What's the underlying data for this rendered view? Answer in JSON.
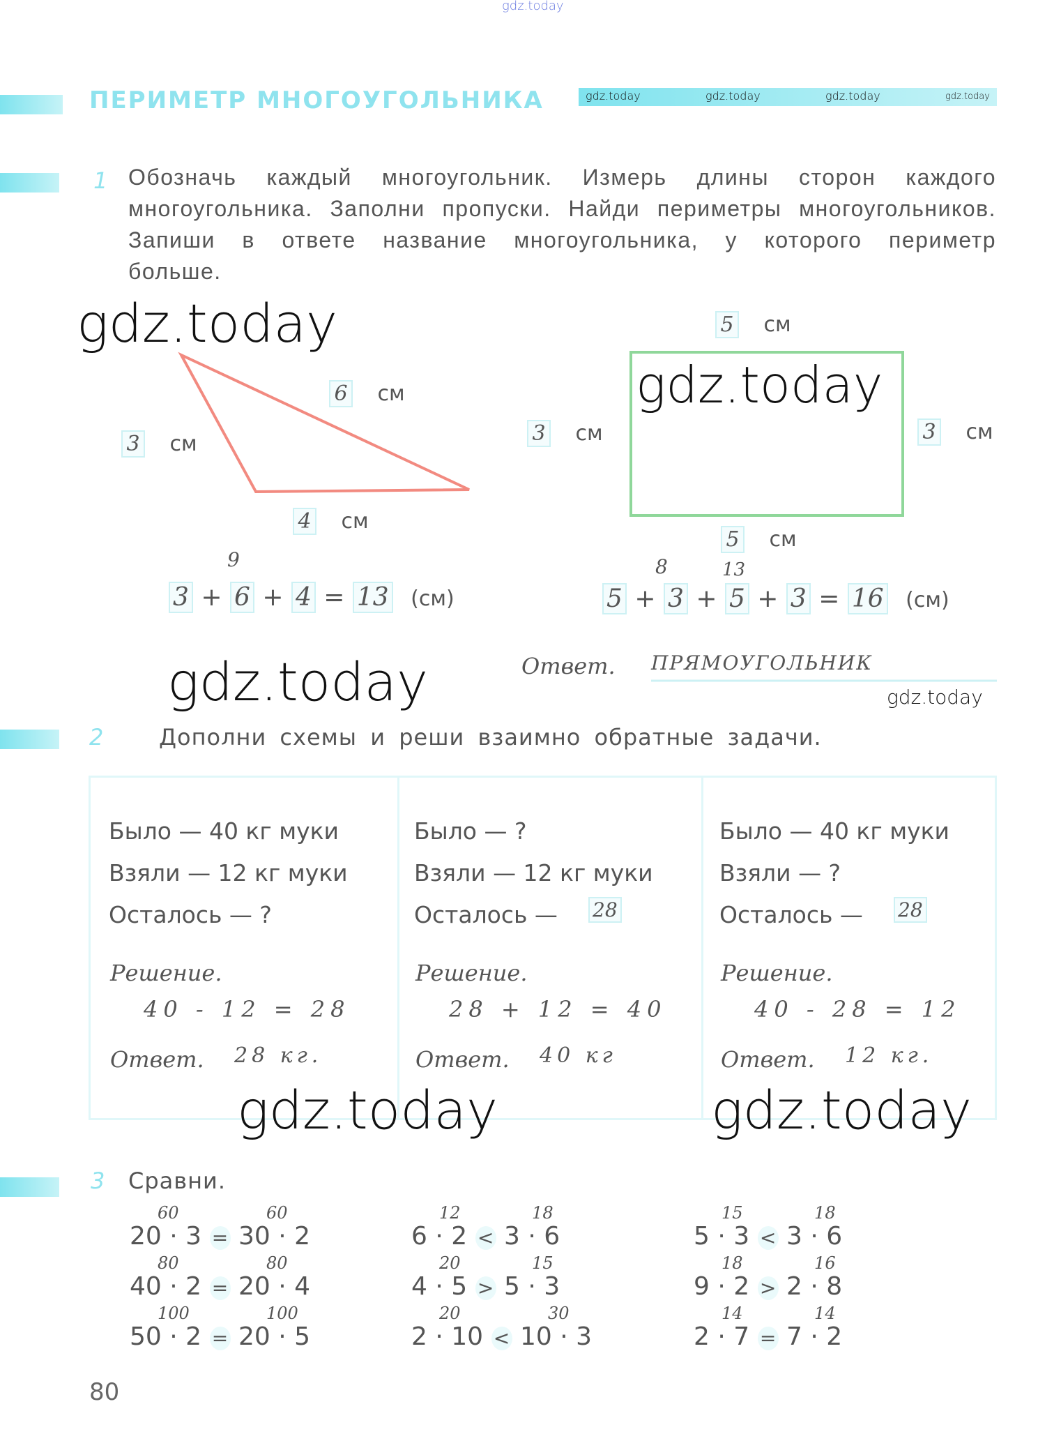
{
  "watermark": "gdz.today",
  "header": {
    "title": "ПЕРИМЕТР МНОГОУГОЛЬНИКА",
    "strip_watermarks": [
      "gdz.today",
      "gdz.today",
      "gdz.today",
      "gdz.today"
    ]
  },
  "task1": {
    "number": "1",
    "text": "Обозначь каждый многоугольник. Измерь длины сторон каждого многоугольника. Заполни пропуски. Найди периметры много­угольников. Запиши в ответе название многоугольника, у которо­го периметр больше.",
    "unit": "см",
    "triangle": {
      "sides": {
        "top": "6",
        "left": "3",
        "bottom": "4"
      },
      "color": "#f28a80",
      "equation": {
        "terms": [
          "3",
          "6",
          "4"
        ],
        "result": "13",
        "partial": "9",
        "unit": "(см)"
      }
    },
    "rectangle": {
      "sides": {
        "top": "5",
        "left": "3",
        "right": "3",
        "bottom": "5"
      },
      "color": "#8fd79a",
      "equation": {
        "terms": [
          "5",
          "3",
          "5",
          "3"
        ],
        "result": "16",
        "partials": [
          "8",
          "13"
        ],
        "unit": "(см)"
      }
    },
    "answer_label": "Ответ.",
    "answer": "прямоугольник"
  },
  "task2": {
    "number": "2",
    "text": "Дополни схемы и реши взаимно обратные задачи.",
    "columns": [
      {
        "lines": [
          "Было — 40 кг муки",
          "Взяли — 12 кг муки",
          "Осталось — ?"
        ],
        "filled": "",
        "solution_label": "Решение.",
        "solution": "40 - 12 = 28",
        "answer_label": "Ответ.",
        "answer": "28 кг."
      },
      {
        "lines": [
          "Было — ?",
          "Взяли — 12 кг муки",
          "Осталось —"
        ],
        "filled": "28",
        "solution_label": "Решение.",
        "solution": "28 + 12 = 40",
        "answer_label": "Ответ.",
        "answer": "40 кг"
      },
      {
        "lines": [
          "Было — 40 кг муки",
          "Взяли — ?",
          "Осталось —"
        ],
        "filled": "28",
        "solution_label": "Решение.",
        "solution": "40 - 28 = 12",
        "answer_label": "Ответ.",
        "answer": "12 кг."
      }
    ]
  },
  "task3": {
    "number": "3",
    "text": "Сравни.",
    "columns": [
      [
        {
          "l": "20 · 3",
          "s": "=",
          "r": "30 · 2",
          "lv": "60",
          "rv": "60"
        },
        {
          "l": "40 · 2",
          "s": "=",
          "r": "20 · 4",
          "lv": "80",
          "rv": "80"
        },
        {
          "l": "50 · 2",
          "s": "=",
          "r": "20 · 5",
          "lv": "100",
          "rv": "100"
        }
      ],
      [
        {
          "l": "6 · 2",
          "s": "<",
          "r": "3 · 6",
          "lv": "12",
          "rv": "18"
        },
        {
          "l": "4 · 5",
          "s": ">",
          "r": "5 · 3",
          "lv": "20",
          "rv": "15"
        },
        {
          "l": "2 · 10",
          "s": "<",
          "r": "10 · 3",
          "lv": "20",
          "rv": "30"
        }
      ],
      [
        {
          "l": "5 · 3",
          "s": "<",
          "r": "3 · 6",
          "lv": "15",
          "rv": "18"
        },
        {
          "l": "9 · 2",
          "s": ">",
          "r": "2 · 8",
          "lv": "18",
          "rv": "16"
        },
        {
          "l": "2 · 7",
          "s": "=",
          "r": "7 · 2",
          "lv": "14",
          "rv": "14"
        }
      ]
    ]
  },
  "page_number": "80",
  "colors": {
    "accent": "#7fe3ee",
    "text": "#555555"
  }
}
